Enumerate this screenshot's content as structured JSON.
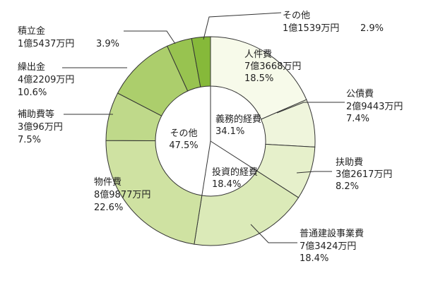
{
  "chart_data": {
    "type": "pie",
    "title": "",
    "center_label": {
      "name": "その他",
      "percent": "47.5%"
    },
    "groups": [
      {
        "name": "義務的経費",
        "percent": "34.1%"
      },
      {
        "name": "投資的経費",
        "percent": "18.4%"
      }
    ],
    "slices": [
      {
        "name": "人件費",
        "amount": "7億3668万円",
        "percent": "18.5%",
        "value": 18.5,
        "color": "#f7faea"
      },
      {
        "name": "公債費",
        "amount": "2億9443万円",
        "percent": "7.4%",
        "value": 7.4,
        "color": "#eff5dc"
      },
      {
        "name": "扶助費",
        "amount": "3億2617万円",
        "percent": "8.2%",
        "value": 8.2,
        "color": "#e6f0cb"
      },
      {
        "name": "普通建設事業費",
        "amount": "7億3424万円",
        "percent": "18.4%",
        "value": 18.4,
        "color": "#dbeab8"
      },
      {
        "name": "物件費",
        "amount": "8億9877万円",
        "percent": "22.6%",
        "value": 22.6,
        "color": "#cfe2a2"
      },
      {
        "name": "補助費等",
        "amount": "3億96万円",
        "percent": "7.5%",
        "value": 7.5,
        "color": "#bfd98a"
      },
      {
        "name": "繰出金",
        "amount": "4億2209万円",
        "percent": "10.6%",
        "value": 10.6,
        "color": "#acce6c"
      },
      {
        "name": "積立金",
        "amount": "1億5437万円",
        "percent": "3.9%",
        "value": 3.9,
        "color": "#98c350"
      },
      {
        "name": "その他",
        "amount": "1億1539万円",
        "percent": "2.9%",
        "value": 2.9,
        "color": "#86b93a"
      }
    ]
  }
}
